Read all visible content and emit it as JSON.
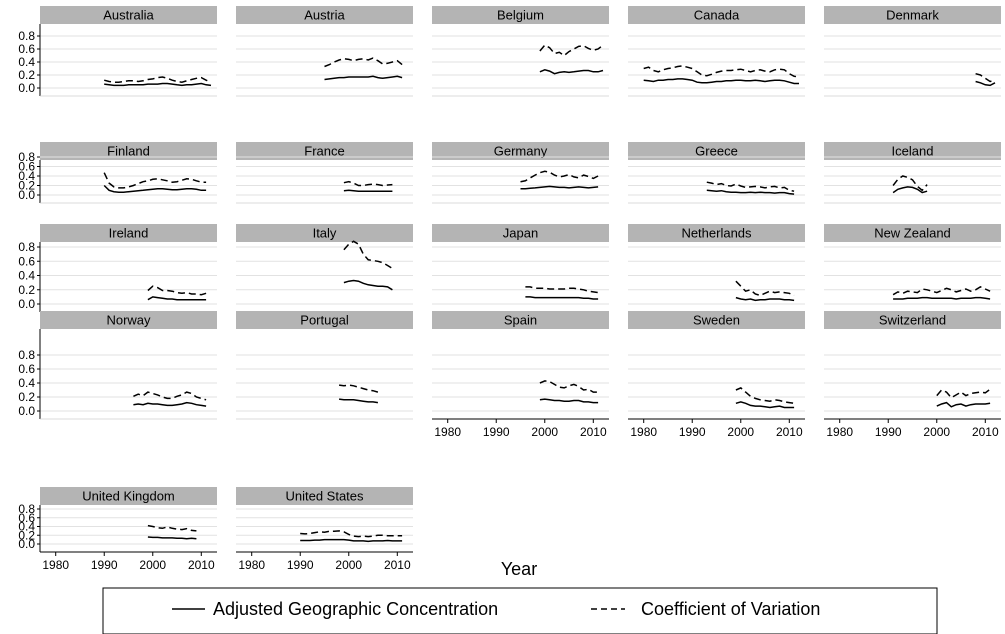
{
  "chart_data": {
    "type": "line",
    "facets": [
      "Australia",
      "Austria",
      "Belgium",
      "Canada",
      "Denmark",
      "Finland",
      "France",
      "Germany",
      "Greece",
      "Iceland",
      "Ireland",
      "Italy",
      "Japan",
      "Netherlands",
      "New Zealand",
      "Norway",
      "Portugal",
      "Spain",
      "Sweden",
      "Switzerland",
      "United Kingdom",
      "United States"
    ],
    "xlabel": "Year",
    "ylabel": "",
    "xlim": [
      1978,
      2012
    ],
    "ylim": [
      -0.02,
      0.92
    ],
    "x_ticks": [
      "1980",
      "1990",
      "2000",
      "2010"
    ],
    "y_ticks": [
      "0.0",
      "0.2",
      "0.4",
      "0.6",
      "0.8"
    ],
    "grid": true,
    "legend_position": "bottom",
    "legend": [
      {
        "label": "Adjusted Geographic Concentration",
        "style": "solid"
      },
      {
        "label": "Coefficient of Variation",
        "style": "dashed"
      }
    ],
    "colors": {
      "line": "#000000",
      "strip": "#b4b4b4",
      "grid": "#e2e2e2"
    },
    "panels": [
      {
        "country": "Australia",
        "x_start": 1990,
        "series": {
          "adjusted": [
            0.06,
            0.05,
            0.04,
            0.04,
            0.04,
            0.05,
            0.05,
            0.05,
            0.05,
            0.06,
            0.06,
            0.06,
            0.07,
            0.07,
            0.06,
            0.05,
            0.04,
            0.05,
            0.05,
            0.06,
            0.07,
            0.05,
            0.04
          ],
          "cv": [
            0.12,
            0.1,
            0.09,
            0.09,
            0.1,
            0.11,
            0.11,
            0.1,
            0.11,
            0.13,
            0.14,
            0.16,
            0.17,
            0.15,
            0.12,
            0.1,
            0.09,
            0.11,
            0.13,
            0.15,
            0.16,
            0.12,
            0.09
          ]
        }
      },
      {
        "country": "Austria",
        "x_start": 1995,
        "series": {
          "adjusted": [
            0.13,
            0.14,
            0.15,
            0.16,
            0.16,
            0.17,
            0.17,
            0.17,
            0.17,
            0.17,
            0.18,
            0.16,
            0.15,
            0.16,
            0.17,
            0.18,
            0.16
          ],
          "cv": [
            0.33,
            0.36,
            0.4,
            0.43,
            0.45,
            0.44,
            0.42,
            0.44,
            0.45,
            0.43,
            0.46,
            0.42,
            0.37,
            0.38,
            0.4,
            0.42,
            0.36
          ]
        }
      },
      {
        "country": "Belgium",
        "x_start": 1999,
        "series": {
          "adjusted": [
            0.25,
            0.28,
            0.26,
            0.22,
            0.24,
            0.25,
            0.24,
            0.25,
            0.26,
            0.27,
            0.27,
            0.25,
            0.25,
            0.27
          ],
          "cv": [
            0.57,
            0.66,
            0.62,
            0.53,
            0.55,
            0.5,
            0.56,
            0.6,
            0.64,
            0.65,
            0.61,
            0.58,
            0.6,
            0.66
          ]
        }
      },
      {
        "country": "Canada",
        "x_start": 1980,
        "series": {
          "adjusted": [
            0.12,
            0.11,
            0.1,
            0.12,
            0.12,
            0.13,
            0.13,
            0.14,
            0.14,
            0.13,
            0.12,
            0.09,
            0.08,
            0.08,
            0.09,
            0.1,
            0.1,
            0.11,
            0.11,
            0.12,
            0.12,
            0.11,
            0.11,
            0.12,
            0.11,
            0.1,
            0.11,
            0.12,
            0.12,
            0.11,
            0.09,
            0.07,
            0.07
          ],
          "cv": [
            0.3,
            0.32,
            0.27,
            0.25,
            0.28,
            0.3,
            0.31,
            0.33,
            0.34,
            0.32,
            0.3,
            0.25,
            0.2,
            0.19,
            0.21,
            0.24,
            0.26,
            0.27,
            0.27,
            0.28,
            0.29,
            0.27,
            0.25,
            0.27,
            0.28,
            0.26,
            0.25,
            0.28,
            0.29,
            0.28,
            0.22,
            0.18,
            0.17
          ]
        }
      },
      {
        "country": "Denmark",
        "x_start": 2008,
        "series": {
          "adjusted": [
            0.1,
            0.08,
            0.05,
            0.04,
            0.08
          ],
          "cv": [
            0.22,
            0.2,
            0.15,
            0.1,
            0.12
          ]
        }
      },
      {
        "country": "Finland",
        "x_start": 1990,
        "series": {
          "adjusted": [
            0.2,
            0.1,
            0.07,
            0.06,
            0.06,
            0.07,
            0.08,
            0.09,
            0.1,
            0.11,
            0.12,
            0.13,
            0.13,
            0.12,
            0.11,
            0.11,
            0.12,
            0.13,
            0.13,
            0.12,
            0.1,
            0.1
          ],
          "cv": [
            0.47,
            0.25,
            0.17,
            0.15,
            0.15,
            0.17,
            0.2,
            0.24,
            0.28,
            0.3,
            0.33,
            0.34,
            0.32,
            0.3,
            0.27,
            0.28,
            0.31,
            0.34,
            0.33,
            0.3,
            0.27,
            0.27
          ]
        }
      },
      {
        "country": "France",
        "x_start": 1999,
        "series": {
          "adjusted": [
            0.09,
            0.1,
            0.09,
            0.08,
            0.08,
            0.08,
            0.08,
            0.08,
            0.08,
            0.08,
            0.08
          ],
          "cv": [
            0.26,
            0.28,
            0.25,
            0.2,
            0.2,
            0.22,
            0.23,
            0.22,
            0.2,
            0.21,
            0.22
          ]
        }
      },
      {
        "country": "Germany",
        "x_start": 1995,
        "series": {
          "adjusted": [
            0.13,
            0.13,
            0.14,
            0.15,
            0.16,
            0.17,
            0.18,
            0.17,
            0.16,
            0.16,
            0.15,
            0.16,
            0.17,
            0.16,
            0.15,
            0.16,
            0.17
          ],
          "cv": [
            0.28,
            0.3,
            0.36,
            0.42,
            0.47,
            0.5,
            0.48,
            0.42,
            0.38,
            0.4,
            0.43,
            0.38,
            0.36,
            0.42,
            0.39,
            0.35,
            0.4
          ]
        }
      },
      {
        "country": "Greece",
        "x_start": 1993,
        "series": {
          "adjusted": [
            0.1,
            0.09,
            0.08,
            0.09,
            0.07,
            0.06,
            0.06,
            0.05,
            0.05,
            0.06,
            0.05,
            0.06,
            0.05,
            0.05,
            0.04,
            0.05,
            0.05,
            0.03,
            0.02
          ],
          "cv": [
            0.27,
            0.25,
            0.22,
            0.24,
            0.2,
            0.19,
            0.23,
            0.19,
            0.16,
            0.17,
            0.18,
            0.17,
            0.15,
            0.17,
            0.18,
            0.15,
            0.16,
            0.1,
            0.08
          ]
        }
      },
      {
        "country": "Iceland",
        "x_start": 1991,
        "series": {
          "adjusted": [
            0.05,
            0.12,
            0.15,
            0.17,
            0.16,
            0.12,
            0.05,
            0.08
          ],
          "cv": [
            0.2,
            0.33,
            0.4,
            0.37,
            0.32,
            0.18,
            0.1,
            0.22
          ]
        }
      },
      {
        "country": "Ireland",
        "x_start": 1999,
        "series": {
          "adjusted": [
            0.06,
            0.1,
            0.09,
            0.08,
            0.07,
            0.07,
            0.06,
            0.06,
            0.06,
            0.06,
            0.06,
            0.06,
            0.06
          ],
          "cv": [
            0.19,
            0.25,
            0.23,
            0.19,
            0.19,
            0.18,
            0.16,
            0.15,
            0.16,
            0.14,
            0.14,
            0.13,
            0.15
          ]
        }
      },
      {
        "country": "Italy",
        "x_start": 1999,
        "series": {
          "adjusted": [
            0.3,
            0.32,
            0.33,
            0.32,
            0.29,
            0.27,
            0.26,
            0.25,
            0.25,
            0.24,
            0.2
          ],
          "cv": [
            0.76,
            0.84,
            0.88,
            0.84,
            0.7,
            0.62,
            0.61,
            0.6,
            0.58,
            0.54,
            0.5
          ]
        }
      },
      {
        "country": "Japan",
        "x_start": 1996,
        "series": {
          "adjusted": [
            0.1,
            0.1,
            0.09,
            0.09,
            0.09,
            0.09,
            0.09,
            0.09,
            0.09,
            0.09,
            0.09,
            0.09,
            0.08,
            0.08,
            0.07,
            0.07
          ],
          "cv": [
            0.24,
            0.24,
            0.22,
            0.22,
            0.22,
            0.21,
            0.21,
            0.21,
            0.21,
            0.22,
            0.22,
            0.21,
            0.2,
            0.18,
            0.17,
            0.16
          ]
        }
      },
      {
        "country": "Netherlands",
        "x_start": 1999,
        "series": {
          "adjusted": [
            0.09,
            0.07,
            0.06,
            0.07,
            0.05,
            0.06,
            0.06,
            0.07,
            0.07,
            0.07,
            0.06,
            0.06,
            0.05
          ],
          "cv": [
            0.32,
            0.25,
            0.18,
            0.2,
            0.14,
            0.12,
            0.15,
            0.18,
            0.16,
            0.17,
            0.16,
            0.15,
            0.12
          ]
        }
      },
      {
        "country": "New Zealand",
        "x_start": 1991,
        "series": {
          "adjusted": [
            0.07,
            0.07,
            0.07,
            0.08,
            0.08,
            0.08,
            0.09,
            0.09,
            0.08,
            0.08,
            0.08,
            0.08,
            0.08,
            0.07,
            0.08,
            0.08,
            0.08,
            0.09,
            0.09,
            0.08,
            0.07
          ],
          "cv": [
            0.13,
            0.17,
            0.15,
            0.18,
            0.17,
            0.16,
            0.21,
            0.2,
            0.18,
            0.16,
            0.19,
            0.22,
            0.2,
            0.17,
            0.19,
            0.21,
            0.18,
            0.2,
            0.24,
            0.21,
            0.18
          ]
        }
      },
      {
        "country": "Norway",
        "x_start": 1996,
        "series": {
          "adjusted": [
            0.09,
            0.1,
            0.09,
            0.11,
            0.1,
            0.1,
            0.09,
            0.08,
            0.08,
            0.09,
            0.1,
            0.12,
            0.11,
            0.09,
            0.08,
            0.07
          ],
          "cv": [
            0.21,
            0.24,
            0.22,
            0.27,
            0.25,
            0.23,
            0.2,
            0.18,
            0.18,
            0.21,
            0.23,
            0.27,
            0.25,
            0.2,
            0.18,
            0.16
          ]
        }
      },
      {
        "country": "Portugal",
        "x_start": 1998,
        "series": {
          "adjusted": [
            0.17,
            0.16,
            0.16,
            0.16,
            0.15,
            0.14,
            0.13,
            0.13,
            0.12
          ],
          "cv": [
            0.37,
            0.36,
            0.37,
            0.36,
            0.34,
            0.32,
            0.3,
            0.29,
            0.27
          ]
        }
      },
      {
        "country": "Spain",
        "x_start": 1999,
        "series": {
          "adjusted": [
            0.16,
            0.17,
            0.16,
            0.15,
            0.15,
            0.14,
            0.14,
            0.15,
            0.15,
            0.13,
            0.13,
            0.12,
            0.12
          ],
          "cv": [
            0.4,
            0.43,
            0.42,
            0.38,
            0.34,
            0.33,
            0.36,
            0.38,
            0.35,
            0.3,
            0.31,
            0.27,
            0.27
          ]
        }
      },
      {
        "country": "Sweden",
        "x_start": 1999,
        "series": {
          "adjusted": [
            0.11,
            0.13,
            0.11,
            0.08,
            0.07,
            0.07,
            0.06,
            0.05,
            0.06,
            0.07,
            0.05,
            0.05,
            0.05
          ],
          "cv": [
            0.3,
            0.33,
            0.27,
            0.21,
            0.18,
            0.16,
            0.15,
            0.14,
            0.16,
            0.15,
            0.13,
            0.12,
            0.11
          ]
        }
      },
      {
        "country": "Switzerland",
        "x_start": 2000,
        "series": {
          "adjusted": [
            0.07,
            0.1,
            0.12,
            0.06,
            0.09,
            0.1,
            0.07,
            0.09,
            0.1,
            0.1,
            0.1,
            0.11
          ],
          "cv": [
            0.22,
            0.3,
            0.27,
            0.19,
            0.23,
            0.27,
            0.22,
            0.25,
            0.26,
            0.27,
            0.26,
            0.31
          ]
        }
      },
      {
        "country": "United Kingdom",
        "x_start": 1999,
        "series": {
          "adjusted": [
            0.16,
            0.15,
            0.15,
            0.14,
            0.14,
            0.14,
            0.13,
            0.13,
            0.12,
            0.13,
            0.12
          ],
          "cv": [
            0.42,
            0.4,
            0.37,
            0.36,
            0.39,
            0.36,
            0.34,
            0.33,
            0.35,
            0.31,
            0.3
          ]
        }
      },
      {
        "country": "United States",
        "x_start": 1990,
        "series": {
          "adjusted": [
            0.08,
            0.08,
            0.08,
            0.09,
            0.09,
            0.1,
            0.1,
            0.1,
            0.1,
            0.1,
            0.09,
            0.07,
            0.07,
            0.07,
            0.06,
            0.07,
            0.07,
            0.07,
            0.08,
            0.07,
            0.07,
            0.07
          ],
          "cv": [
            0.24,
            0.23,
            0.24,
            0.26,
            0.28,
            0.27,
            0.29,
            0.29,
            0.3,
            0.28,
            0.22,
            0.18,
            0.17,
            0.18,
            0.17,
            0.18,
            0.2,
            0.2,
            0.19,
            0.19,
            0.19,
            0.19
          ]
        }
      }
    ]
  }
}
